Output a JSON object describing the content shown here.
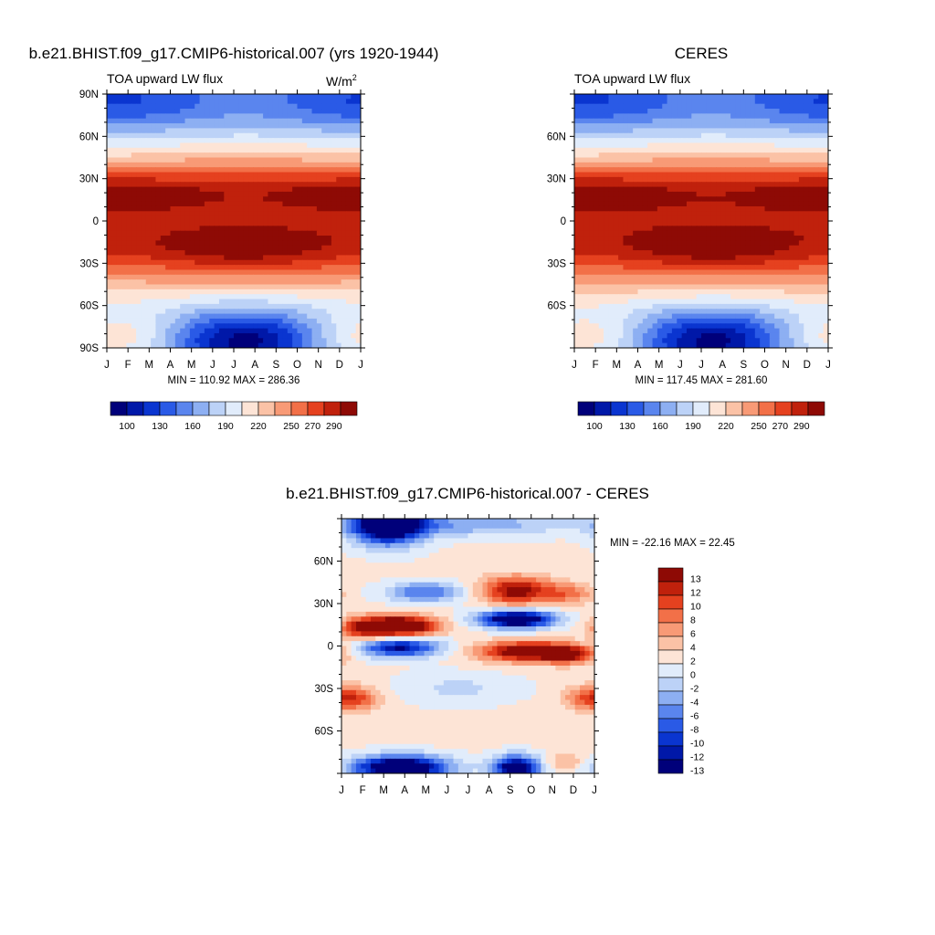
{
  "palette": {
    "levels": [
      "#00007a",
      "#0018a8",
      "#0a35d0",
      "#2a5ae6",
      "#5a85ee",
      "#8daff2",
      "#bcd2f7",
      "#e1ecfb",
      "#fde4d6",
      "#fbc2a6",
      "#f89a76",
      "#f27048",
      "#e5411f",
      "#c0210c",
      "#8e0a05"
    ],
    "diff": [
      "#00007a",
      "#0018a8",
      "#0a35d0",
      "#2a5ae6",
      "#5a85ee",
      "#8daff2",
      "#bcd2f7",
      "#e1ecfb",
      "#fde4d6",
      "#fbc2a6",
      "#f89a76",
      "#f27048",
      "#e5411f",
      "#c0210c",
      "#8e0a05"
    ]
  },
  "months": [
    "J",
    "F",
    "M",
    "A",
    "M",
    "J",
    "J",
    "A",
    "S",
    "O",
    "N",
    "D",
    "J"
  ],
  "panel1": {
    "title": "b.e21.BHIST.f09_g17.CMIP6-historical.007 (yrs 1920-1944)",
    "left_string": "TOA upward LW flux",
    "units_base": "W/m",
    "units_exp": "2",
    "lat_labels": [
      "90N",
      "60N",
      "30N",
      "0",
      "30S",
      "60S",
      "90S"
    ],
    "minmax": "MIN = 110.92 MAX = 286.36",
    "colorbar_labels": [
      "100",
      "130",
      "160",
      "190",
      "220",
      "250",
      "270",
      "290"
    ]
  },
  "panel2": {
    "title": "CERES",
    "left_string": "TOA upward LW flux",
    "lat_labels": [
      "60N",
      "30N",
      "0",
      "30S",
      "60S"
    ],
    "minmax": "MIN = 117.45 MAX = 281.60",
    "colorbar_labels": [
      "100",
      "130",
      "160",
      "190",
      "220",
      "250",
      "270",
      "290"
    ]
  },
  "panel3": {
    "title": "b.e21.BHIST.f09_g17.CMIP6-historical.007 - CERES",
    "lat_labels": [
      "60N",
      "30N",
      "0",
      "30S",
      "60S"
    ],
    "minmax": "MIN = -22.16 MAX =  22.45",
    "colorbar_labels": [
      "13",
      "12",
      "10",
      "8",
      "6",
      "4",
      "2",
      "0",
      "-2",
      "-4",
      "-6",
      "-8",
      "-10",
      "-12",
      "-13"
    ]
  },
  "chart_data": [
    {
      "type": "heatmap",
      "title": "b.e21.BHIST.f09_g17.CMIP6-historical.007 (yrs 1920-1944)",
      "xlabel": "",
      "ylabel": "",
      "variable": "TOA upward LW flux",
      "units": "W/m2",
      "x": [
        "J",
        "F",
        "M",
        "A",
        "M",
        "J",
        "J",
        "A",
        "S",
        "O",
        "N",
        "D",
        "J"
      ],
      "ylim": [
        -90,
        90
      ],
      "min": 110.92,
      "max": 286.36,
      "levels": [
        100,
        110,
        130,
        150,
        160,
        180,
        190,
        200,
        220,
        240,
        250,
        260,
        270,
        280,
        290
      ]
    },
    {
      "type": "heatmap",
      "title": "CERES",
      "xlabel": "",
      "ylabel": "",
      "variable": "TOA upward LW flux",
      "x": [
        "J",
        "F",
        "M",
        "A",
        "M",
        "J",
        "J",
        "A",
        "S",
        "O",
        "N",
        "D",
        "J"
      ],
      "ylim": [
        -90,
        90
      ],
      "min": 117.45,
      "max": 281.6,
      "levels": [
        100,
        110,
        130,
        150,
        160,
        180,
        190,
        200,
        220,
        240,
        250,
        260,
        270,
        280,
        290
      ]
    },
    {
      "type": "heatmap",
      "title": "b.e21.BHIST.f09_g17.CMIP6-historical.007 - CERES",
      "xlabel": "",
      "ylabel": "",
      "x": [
        "J",
        "F",
        "M",
        "A",
        "M",
        "J",
        "J",
        "A",
        "S",
        "O",
        "N",
        "D",
        "J"
      ],
      "ylim": [
        -90,
        90
      ],
      "min": -22.16,
      "max": 22.45,
      "levels": [
        -13,
        -12,
        -10,
        -8,
        -6,
        -4,
        -2,
        0,
        2,
        4,
        6,
        8,
        10,
        12,
        13
      ]
    }
  ]
}
